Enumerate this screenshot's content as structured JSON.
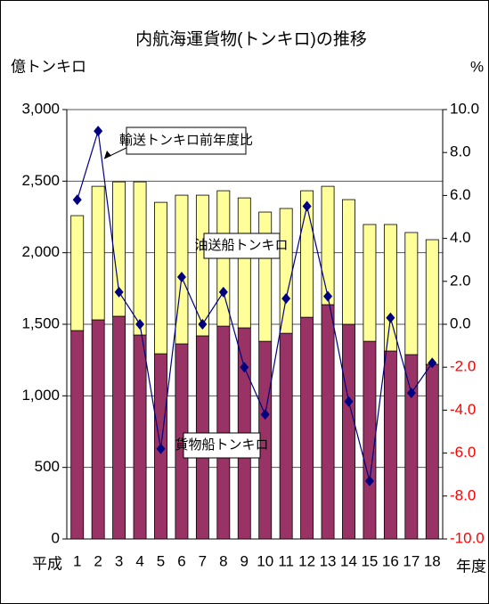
{
  "chart_data": {
    "type": "bar",
    "title": "内航海運貨物(トンキロ)の推移",
    "y_label": "億トンキロ",
    "y2_label": "%",
    "x_label_left": "平成",
    "x_label_right": "年度",
    "categories": [
      "1",
      "2",
      "3",
      "4",
      "5",
      "6",
      "7",
      "8",
      "9",
      "10",
      "11",
      "12",
      "13",
      "14",
      "15",
      "16",
      "17",
      "18"
    ],
    "stacked": true,
    "grid": true,
    "negative_tick_color": "#ff0000",
    "series": [
      {
        "name": "貨物船トンキロ",
        "color": "#993366",
        "values": [
          1456,
          1531,
          1556,
          1425,
          1294,
          1363,
          1419,
          1487,
          1475,
          1381,
          1437,
          1549,
          1637,
          1500,
          1381,
          1313,
          1288,
          1220
        ]
      },
      {
        "name": "油送船トンキロ",
        "color": "#ffff99",
        "values": [
          803,
          933,
          939,
          1070,
          1058,
          1039,
          983,
          946,
          908,
          903,
          872,
          884,
          827,
          871,
          816,
          884,
          853,
          871
        ]
      },
      {
        "name": "輸送トンキロ前年度比",
        "color": "#000080",
        "axis": "y2",
        "type": "line",
        "values": [
          5.8,
          9.0,
          1.5,
          0.0,
          -5.8,
          2.2,
          0.0,
          1.5,
          -2.0,
          -4.2,
          1.2,
          5.5,
          1.3,
          -3.6,
          -7.3,
          0.3,
          -3.2,
          -1.8
        ]
      }
    ],
    "ylim": [
      0,
      3000
    ],
    "yticks": [
      0,
      500,
      {
        "value": 1000,
        "label": "1,000"
      },
      {
        "value": 1500,
        "label": "1,500"
      },
      {
        "value": 2000,
        "label": "2,000"
      },
      {
        "value": 2500,
        "label": "2,500"
      },
      {
        "value": 3000,
        "label": "3,000"
      }
    ],
    "y2lim": [
      -10,
      10
    ],
    "y2ticks": [
      {
        "value": 10,
        "label": "10.0"
      },
      {
        "value": 8,
        "label": "8.0"
      },
      {
        "value": 6,
        "label": "6.0"
      },
      {
        "value": 4,
        "label": "4.0"
      },
      {
        "value": 2,
        "label": "2.0"
      },
      {
        "value": 0,
        "label": "0.0"
      },
      {
        "value": -2,
        "label": "-2.0"
      },
      {
        "value": -4,
        "label": "-4.0"
      },
      {
        "value": -6,
        "label": "-6.0"
      },
      {
        "value": -8,
        "label": "-8.0"
      },
      {
        "value": -10,
        "label": "-10.0"
      }
    ]
  }
}
